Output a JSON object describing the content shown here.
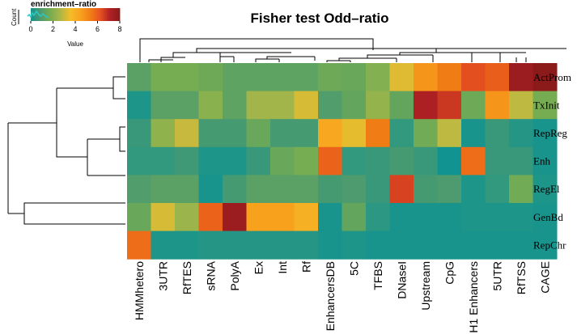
{
  "chart_data": {
    "type": "heatmap",
    "title": "Fisher test Odd–ratio",
    "key": {
      "title": "enrichment–ratio",
      "ylabel": "Count",
      "xlabel": "Value",
      "ticks": [
        "0",
        "2",
        "4",
        "6",
        "8"
      ],
      "range": [
        0,
        8
      ],
      "colors": [
        "#119391",
        "#4c9b6f",
        "#76ad52",
        "#abb748",
        "#f3bd2a",
        "#f8a31e",
        "#f07f14",
        "#e8531e",
        "#b02124",
        "#8b1a1a"
      ]
    },
    "rows": [
      "ActProm",
      "TxInit",
      "RepReg",
      "Enh",
      "RegEl",
      "GenBd",
      "RepChr"
    ],
    "columns": [
      "HMMhetero",
      "3UTR",
      "RfTES",
      "sRNA",
      "PolyA",
      "Ex",
      "Int",
      "Rf",
      "EnhancersDB",
      "5C",
      "TFBS",
      "DNaseI",
      "Upstream",
      "CpG",
      "H1 Enhancers",
      "5UTR",
      "RfTSS",
      "CAGE"
    ],
    "values": [
      [
        1.2,
        1.8,
        1.8,
        1.6,
        1.3,
        1.3,
        1.3,
        1.3,
        1.6,
        1.5,
        2.0,
        3.3,
        4.8,
        5.4,
        6.3,
        6.0,
        7.6,
        8.0
      ],
      [
        0.2,
        1.2,
        1.2,
        2.1,
        1.3,
        2.5,
        2.5,
        3.2,
        1.0,
        1.4,
        2.3,
        1.4,
        7.2,
        6.7,
        1.6,
        4.8,
        2.9,
        1.8
      ],
      [
        0.6,
        2.2,
        3.0,
        0.8,
        0.8,
        1.5,
        0.8,
        0.8,
        4.3,
        3.4,
        5.4,
        0.5,
        1.7,
        2.9,
        0.1,
        0.6,
        0.3,
        0.1
      ],
      [
        0.5,
        0.5,
        0.7,
        0.2,
        0.2,
        0.6,
        1.5,
        1.8,
        5.9,
        0.5,
        0.6,
        0.8,
        0.6,
        0.0,
        5.7,
        0.6,
        0.6,
        0.1
      ],
      [
        1.0,
        1.2,
        1.2,
        0.1,
        0.8,
        1.2,
        1.2,
        1.2,
        0.8,
        0.9,
        0.6,
        6.5,
        0.8,
        0.9,
        0.2,
        0.5,
        1.7,
        0.2
      ],
      [
        1.5,
        3.2,
        2.4,
        5.9,
        7.6,
        4.5,
        4.5,
        4.0,
        0.1,
        1.4,
        0.4,
        0.1,
        0.1,
        0.1,
        0.2,
        0.2,
        0.2,
        0.1
      ],
      [
        5.7,
        0.2,
        0.2,
        0.3,
        0.3,
        0.3,
        0.3,
        0.3,
        0.1,
        0.2,
        0.1,
        0.1,
        0.1,
        0.1,
        0.1,
        0.1,
        0.1,
        0.1
      ]
    ]
  }
}
